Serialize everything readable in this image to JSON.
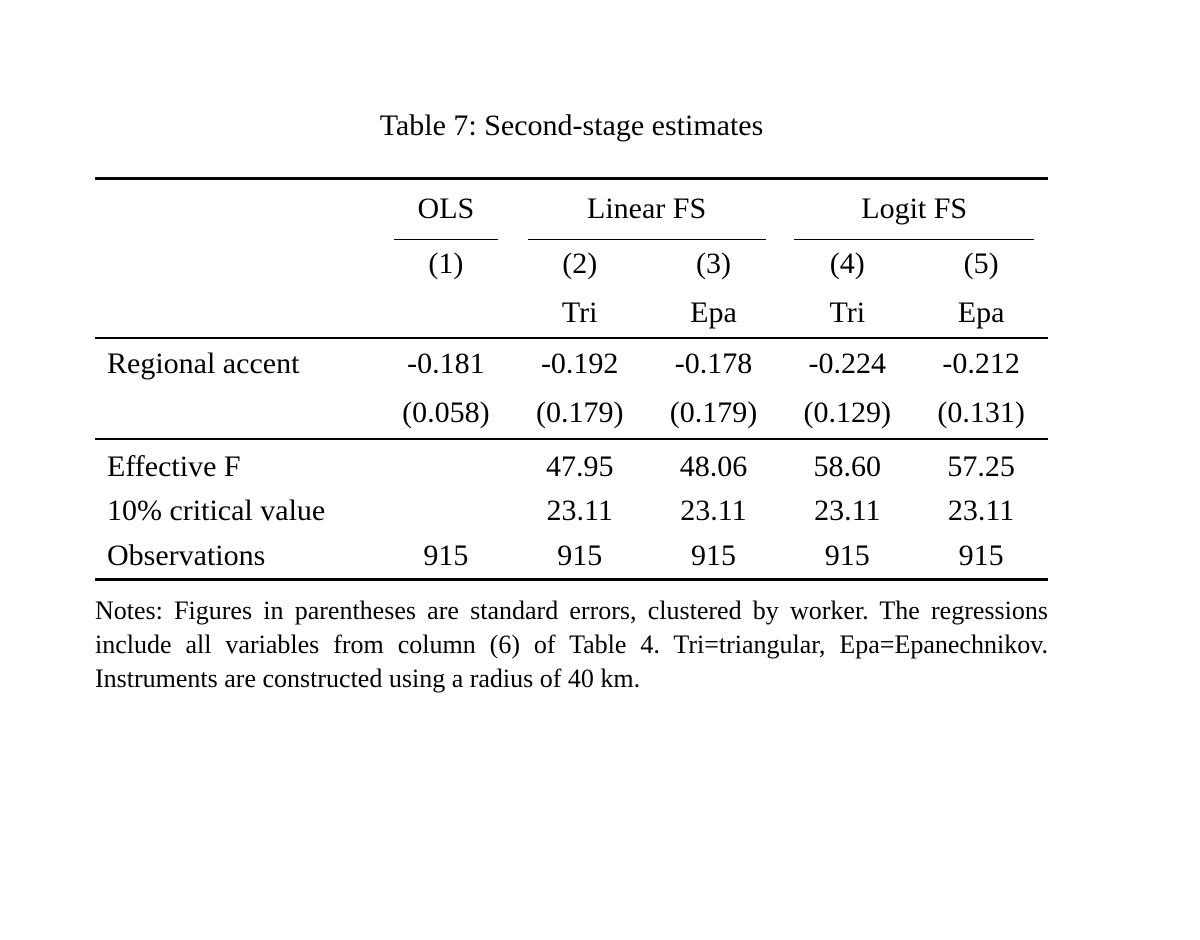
{
  "page": {
    "title": "Table 7: Second-stage estimates"
  },
  "table": {
    "column_groups": [
      {
        "label": "OLS",
        "span": 1
      },
      {
        "label": "Linear FS",
        "span": 2
      },
      {
        "label": "Logit FS",
        "span": 2
      }
    ],
    "column_numbers": [
      "(1)",
      "(2)",
      "(3)",
      "(4)",
      "(5)"
    ],
    "column_kernels": [
      "",
      "Tri",
      "Epa",
      "Tri",
      "Epa"
    ],
    "rows": [
      {
        "label": "Regional accent",
        "values": [
          "-0.181",
          "-0.192",
          "-0.178",
          "-0.224",
          "-0.212"
        ]
      },
      {
        "label": "",
        "values": [
          "(0.058)",
          "(0.179)",
          "(0.179)",
          "(0.129)",
          "(0.131)"
        ]
      },
      {
        "label": "Effective F",
        "values": [
          "",
          "47.95",
          "48.06",
          "58.60",
          "57.25"
        ]
      },
      {
        "label": "10% critical value",
        "values": [
          "",
          "23.11",
          "23.11",
          "23.11",
          "23.11"
        ]
      },
      {
        "label": "Observations",
        "values": [
          "915",
          "915",
          "915",
          "915",
          "915"
        ]
      }
    ],
    "notes": "Notes: Figures in parentheses are standard errors, clustered by worker. The regressions include all variables from column (6) of Table 4. Tri=triangular, Epa=Epanechnikov. Instruments are constructed using a radius of 40 km."
  },
  "colors": {
    "background": "#ffffff",
    "text": "#000000",
    "rule": "#000000"
  }
}
